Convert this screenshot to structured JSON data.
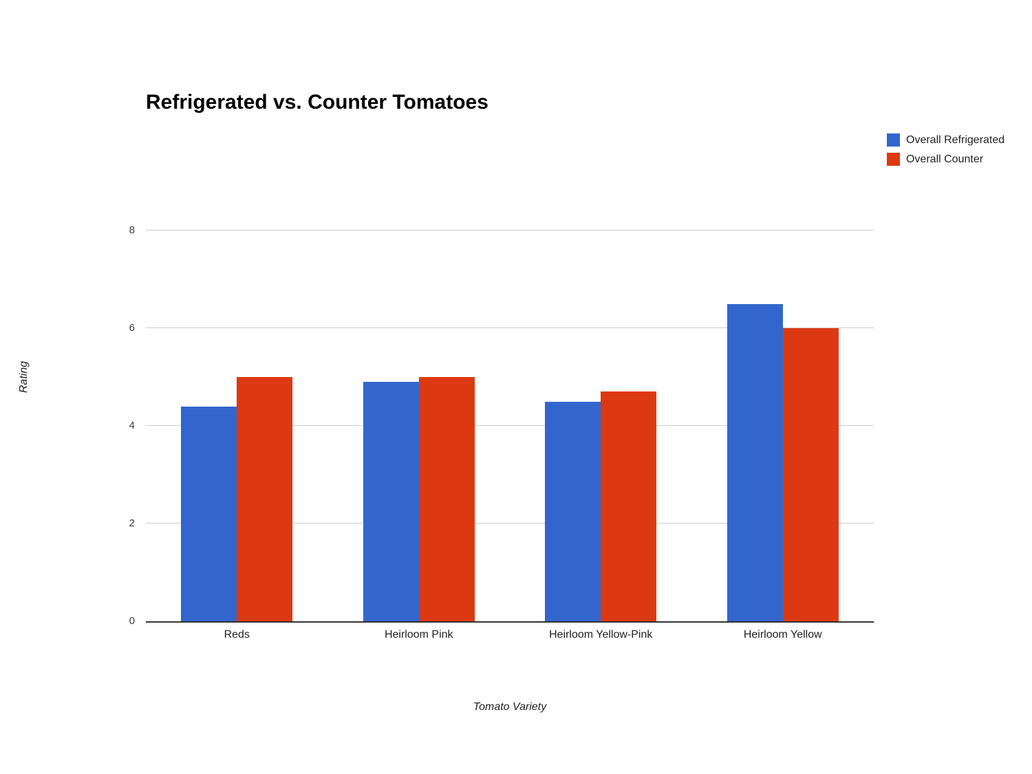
{
  "chart_data": {
    "type": "bar",
    "title": "Refrigerated vs. Counter Tomatoes",
    "xlabel": "Tomato Variety",
    "ylabel": "Rating",
    "categories": [
      "Reds",
      "Heirloom Pink",
      "Heirloom Yellow-Pink",
      "Heirloom Yellow"
    ],
    "series": [
      {
        "name": "Overall Refrigerated",
        "color": "#3366CC",
        "values": [
          4.4,
          4.9,
          4.5,
          6.5
        ]
      },
      {
        "name": "Overall Counter",
        "color": "#DC3912",
        "values": [
          5.0,
          5.0,
          4.7,
          6.0
        ]
      }
    ],
    "ylim": [
      0,
      8
    ],
    "yticks": [
      0,
      2,
      4,
      6,
      8
    ],
    "grid": true,
    "legend_position": "top-right",
    "background_color": "#ffffff",
    "gridline_color": "#cccccc",
    "axis_line_color": "#333333"
  }
}
